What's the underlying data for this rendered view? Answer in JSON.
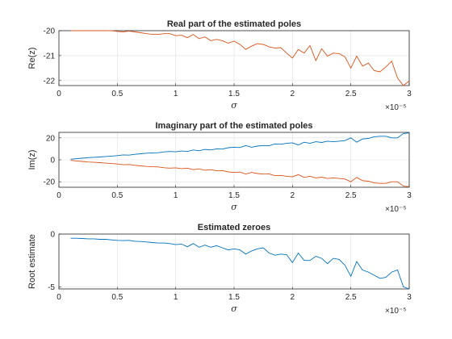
{
  "chart_data": [
    {
      "type": "line",
      "title": "Real part of the estimated poles",
      "xlabel": "σ",
      "ylabel": "Re(z)",
      "x_exponent": "×10⁻⁵",
      "xlim": [
        0,
        3
      ],
      "ylim": [
        -22.2,
        -20
      ],
      "xticks": [
        "0",
        "0.5",
        "1",
        "1.5",
        "2",
        "2.5",
        "3"
      ],
      "yticks": [
        "-20",
        "-21",
        "-22"
      ],
      "grid": true,
      "x": [
        0.1,
        0.15,
        0.2,
        0.25,
        0.3,
        0.35,
        0.4,
        0.45,
        0.5,
        0.55,
        0.6,
        0.65,
        0.7,
        0.75,
        0.8,
        0.85,
        0.9,
        0.95,
        1.0,
        1.05,
        1.1,
        1.15,
        1.2,
        1.25,
        1.3,
        1.35,
        1.4,
        1.45,
        1.5,
        1.55,
        1.6,
        1.65,
        1.7,
        1.75,
        1.8,
        1.85,
        1.9,
        1.95,
        2.0,
        2.05,
        2.1,
        2.15,
        2.2,
        2.25,
        2.3,
        2.35,
        2.4,
        2.45,
        2.5,
        2.55,
        2.6,
        2.65,
        2.7,
        2.75,
        2.8,
        2.85,
        2.9,
        2.95,
        3.0
      ],
      "series": [
        {
          "color": "#d95319",
          "values": [
            -20,
            -20,
            -20,
            -20,
            -20,
            -20,
            -20,
            -20,
            -20.03,
            -20.05,
            -20.02,
            -20.05,
            -20.08,
            -20.12,
            -20.15,
            -20.15,
            -20.12,
            -20.12,
            -20.2,
            -20.18,
            -20.28,
            -20.15,
            -20.32,
            -20.25,
            -20.4,
            -20.35,
            -20.4,
            -20.5,
            -20.42,
            -20.55,
            -20.75,
            -20.62,
            -20.52,
            -20.55,
            -20.65,
            -20.7,
            -20.68,
            -20.9,
            -21.1,
            -20.75,
            -20.9,
            -20.6,
            -21.2,
            -20.72,
            -21.02,
            -20.9,
            -20.92,
            -21.05,
            -21.5,
            -21.02,
            -21.42,
            -21.3,
            -21.6,
            -21.65,
            -21.45,
            -21.22,
            -21.9,
            -22.2,
            -22.02
          ]
        }
      ]
    },
    {
      "type": "line",
      "title": "Imaginary part of the estimated poles",
      "xlabel": "σ",
      "ylabel": "Im(z)",
      "x_exponent": "×10⁻⁵",
      "xlim": [
        0,
        3
      ],
      "ylim": [
        -25,
        25
      ],
      "xticks": [
        "0",
        "0.5",
        "1",
        "1.5",
        "2",
        "2.5",
        "3"
      ],
      "yticks": [
        "20",
        "0",
        "-20"
      ],
      "grid": true,
      "x": [
        0.1,
        0.15,
        0.2,
        0.25,
        0.3,
        0.35,
        0.4,
        0.45,
        0.5,
        0.55,
        0.6,
        0.65,
        0.7,
        0.75,
        0.8,
        0.85,
        0.9,
        0.95,
        1.0,
        1.05,
        1.1,
        1.15,
        1.2,
        1.25,
        1.3,
        1.35,
        1.4,
        1.45,
        1.5,
        1.55,
        1.6,
        1.65,
        1.7,
        1.75,
        1.8,
        1.85,
        1.9,
        1.95,
        2.0,
        2.05,
        2.1,
        2.15,
        2.2,
        2.25,
        2.3,
        2.35,
        2.4,
        2.45,
        2.5,
        2.55,
        2.6,
        2.65,
        2.7,
        2.75,
        2.8,
        2.85,
        2.9,
        2.95,
        3.0
      ],
      "series": [
        {
          "color": "#0072bd",
          "values": [
            0.5,
            1,
            1.5,
            2,
            2.3,
            2.6,
            3,
            3.4,
            3.8,
            4.5,
            4.3,
            5,
            5.5,
            6,
            6.3,
            6.5,
            7.2,
            7.6,
            7.3,
            8,
            7.6,
            9,
            8.2,
            9.5,
            9,
            10,
            9.8,
            11,
            11.5,
            11.2,
            13,
            11.5,
            12.5,
            13,
            12.8,
            14.5,
            14.2,
            15,
            15.5,
            13.5,
            16,
            15,
            16.5,
            15.8,
            17,
            16.5,
            17,
            17.5,
            20,
            16,
            19,
            19.5,
            21,
            21.5,
            21.5,
            20,
            20,
            24,
            24.5
          ]
        },
        {
          "color": "#d95319",
          "values": [
            -0.5,
            -1,
            -1.5,
            -2,
            -2.3,
            -2.6,
            -3,
            -3.4,
            -3.8,
            -4.5,
            -4.3,
            -5,
            -5.5,
            -6,
            -6.3,
            -6.5,
            -7.2,
            -7.6,
            -7.3,
            -8,
            -7.6,
            -9,
            -8.2,
            -9.5,
            -9,
            -10,
            -9.8,
            -11,
            -11.5,
            -11.2,
            -13,
            -11.5,
            -12.5,
            -13,
            -12.8,
            -14.5,
            -14.2,
            -15,
            -15.5,
            -13.5,
            -16,
            -15,
            -16.5,
            -15.8,
            -17,
            -16.5,
            -17,
            -17.5,
            -20,
            -16,
            -19,
            -19.5,
            -21,
            -21.5,
            -21.5,
            -20,
            -20,
            -24,
            -24.5
          ]
        }
      ]
    },
    {
      "type": "line",
      "title": "Estimated zeroes",
      "xlabel": "σ",
      "ylabel": "Root estimate",
      "x_exponent": "×10⁻⁵",
      "xlim": [
        0,
        3
      ],
      "ylim": [
        -5.2,
        0
      ],
      "xticks": [
        "0",
        "0.5",
        "1",
        "1.5",
        "2",
        "2.5",
        "3"
      ],
      "yticks": [
        "0",
        "-5"
      ],
      "grid": true,
      "x": [
        0.1,
        0.15,
        0.2,
        0.25,
        0.3,
        0.35,
        0.4,
        0.45,
        0.5,
        0.55,
        0.6,
        0.65,
        0.7,
        0.75,
        0.8,
        0.85,
        0.9,
        0.95,
        1.0,
        1.05,
        1.1,
        1.15,
        1.2,
        1.25,
        1.3,
        1.35,
        1.4,
        1.45,
        1.5,
        1.55,
        1.6,
        1.65,
        1.7,
        1.75,
        1.8,
        1.85,
        1.9,
        1.95,
        2.0,
        2.05,
        2.1,
        2.15,
        2.2,
        2.25,
        2.3,
        2.35,
        2.4,
        2.45,
        2.5,
        2.55,
        2.6,
        2.65,
        2.7,
        2.75,
        2.8,
        2.85,
        2.9,
        2.95,
        3.0
      ],
      "series": [
        {
          "color": "#0072bd",
          "values": [
            -0.4,
            -0.4,
            -0.42,
            -0.45,
            -0.45,
            -0.5,
            -0.5,
            -0.55,
            -0.6,
            -0.62,
            -0.6,
            -0.68,
            -0.7,
            -0.75,
            -0.8,
            -0.85,
            -0.85,
            -0.9,
            -1.0,
            -0.95,
            -1.2,
            -0.9,
            -1.25,
            -1.05,
            -1.25,
            -1.1,
            -1.3,
            -1.5,
            -1.4,
            -1.5,
            -1.9,
            -1.6,
            -1.4,
            -1.3,
            -1.8,
            -2.0,
            -1.9,
            -1.95,
            -2.7,
            -1.8,
            -2.5,
            -2.5,
            -2.1,
            -2.3,
            -2.8,
            -2.3,
            -2.4,
            -2.95,
            -4.0,
            -2.6,
            -3.4,
            -3.6,
            -3.9,
            -4.2,
            -4.1,
            -3.6,
            -3.4,
            -5.0,
            -5.2
          ]
        }
      ]
    }
  ]
}
